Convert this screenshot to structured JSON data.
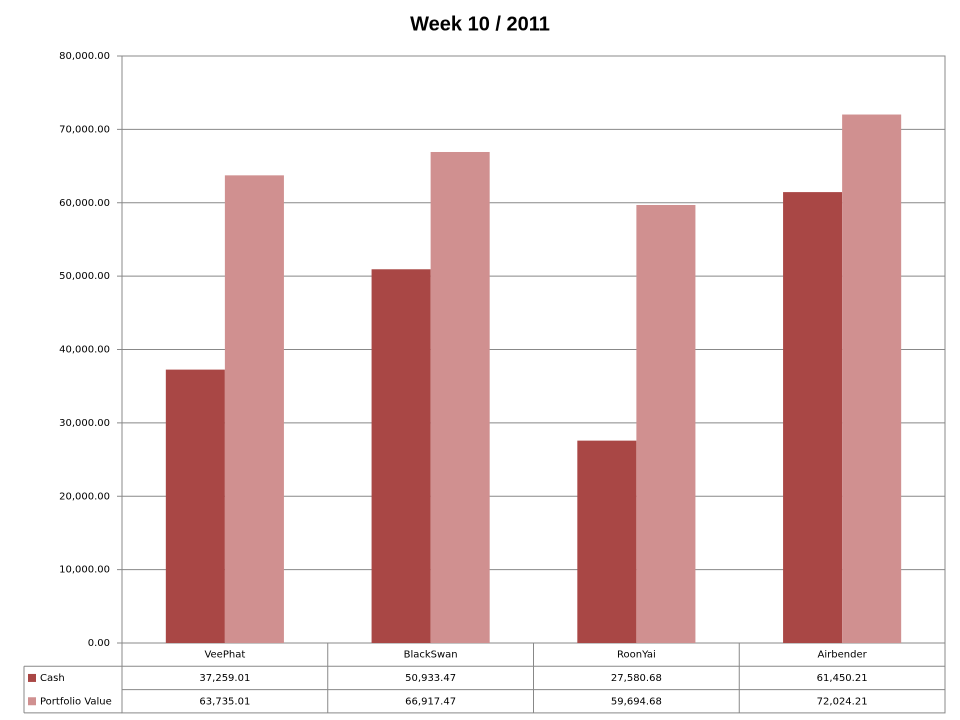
{
  "chart_data": {
    "type": "bar",
    "title": "Week 10 / 2011",
    "categories": [
      "VeePhat",
      "BlackSwan",
      "RoonYai",
      "Airbender"
    ],
    "series": [
      {
        "name": "Cash",
        "color": "#a94745",
        "values": [
          37259.01,
          50933.47,
          27580.68,
          61450.21
        ],
        "value_labels": [
          "37,259.01",
          "50,933.47",
          "27,580.68",
          "61,450.21"
        ]
      },
      {
        "name": "Portfolio Value",
        "color": "#d09090",
        "values": [
          63735.01,
          66917.47,
          59694.68,
          72024.21
        ],
        "value_labels": [
          "63,735.01",
          "66,917.47",
          "59,694.68",
          "72,024.21"
        ]
      }
    ],
    "ylim": [
      0,
      80000
    ],
    "yticks": [
      {
        "value": 0,
        "label": "0.00"
      },
      {
        "value": 10000,
        "label": "10,000.00"
      },
      {
        "value": 20000,
        "label": "20,000.00"
      },
      {
        "value": 30000,
        "label": "30,000.00"
      },
      {
        "value": 40000,
        "label": "40,000.00"
      },
      {
        "value": 50000,
        "label": "50,000.00"
      },
      {
        "value": 60000,
        "label": "60,000.00"
      },
      {
        "value": 70000,
        "label": "70,000.00"
      },
      {
        "value": 80000,
        "label": "80,000.00"
      }
    ],
    "grid": true
  }
}
